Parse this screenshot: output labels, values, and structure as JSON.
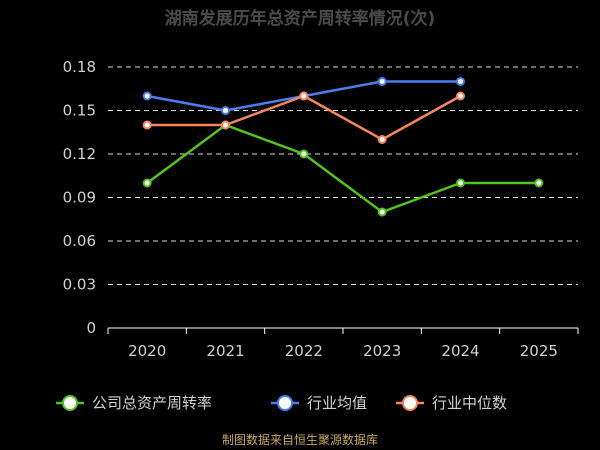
{
  "chart_data": {
    "type": "line",
    "title": "湖南发展历年总资产周转率情况(次)",
    "categories": [
      "2020",
      "2021",
      "2022",
      "2023",
      "2024",
      "2025"
    ],
    "y_ticks": [
      "0",
      "0.03",
      "0.06",
      "0.09",
      "0.12",
      "0.15",
      "0.18"
    ],
    "ylim": [
      0,
      0.18
    ],
    "grid": true,
    "legend_position": "bottom",
    "series": [
      {
        "name": "公司总资产周转率",
        "color": "#52c41a",
        "values": [
          0.1,
          0.14,
          0.12,
          0.08,
          0.1,
          0.1
        ]
      },
      {
        "name": "行业均值",
        "color": "#4a7ef0",
        "values": [
          0.16,
          0.15,
          0.16,
          0.17,
          0.17,
          null
        ]
      },
      {
        "name": "行业中位数",
        "color": "#f5875a",
        "values": [
          0.14,
          0.14,
          0.16,
          0.13,
          0.16,
          null
        ]
      }
    ],
    "source": "制图数据来自恒生聚源数据库"
  }
}
